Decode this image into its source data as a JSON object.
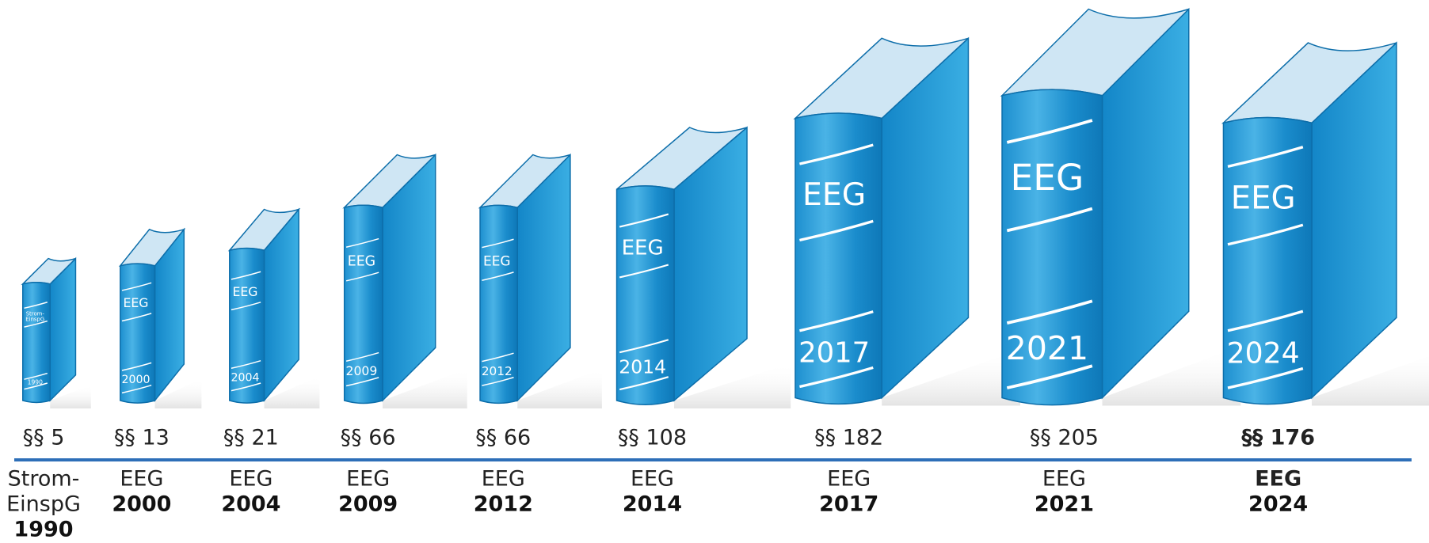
{
  "books": [
    {
      "spine_title": [
        "Strom-",
        "EinspG"
      ],
      "spine_year": "1990",
      "count": "§§ 5",
      "name": [
        "Strom-",
        "EinspG"
      ],
      "year": "1990"
    },
    {
      "spine_title": [
        "EEG"
      ],
      "spine_year": "2000",
      "count": "§§ 13",
      "name": [
        "EEG"
      ],
      "year": "2000"
    },
    {
      "spine_title": [
        "EEG"
      ],
      "spine_year": "2004",
      "count": "§§ 21",
      "name": [
        "EEG"
      ],
      "year": "2004"
    },
    {
      "spine_title": [
        "EEG"
      ],
      "spine_year": "2009",
      "count": "§§ 66",
      "name": [
        "EEG"
      ],
      "year": "2009"
    },
    {
      "spine_title": [
        "EEG"
      ],
      "spine_year": "2012",
      "count": "§§ 66",
      "name": [
        "EEG"
      ],
      "year": "2012"
    },
    {
      "spine_title": [
        "EEG"
      ],
      "spine_year": "2014",
      "count": "§§ 108",
      "name": [
        "EEG"
      ],
      "year": "2014"
    },
    {
      "spine_title": [
        "EEG"
      ],
      "spine_year": "2017",
      "count": "§§ 182",
      "name": [
        "EEG"
      ],
      "year": "2017"
    },
    {
      "spine_title": [
        "EEG"
      ],
      "spine_year": "2021",
      "count": "§§ 205",
      "name": [
        "EEG"
      ],
      "year": "2021"
    },
    {
      "spine_title": [
        "EEG"
      ],
      "spine_year": "2024",
      "count": "§§ 176",
      "name": [
        "EEG"
      ],
      "year": "2024"
    }
  ]
}
